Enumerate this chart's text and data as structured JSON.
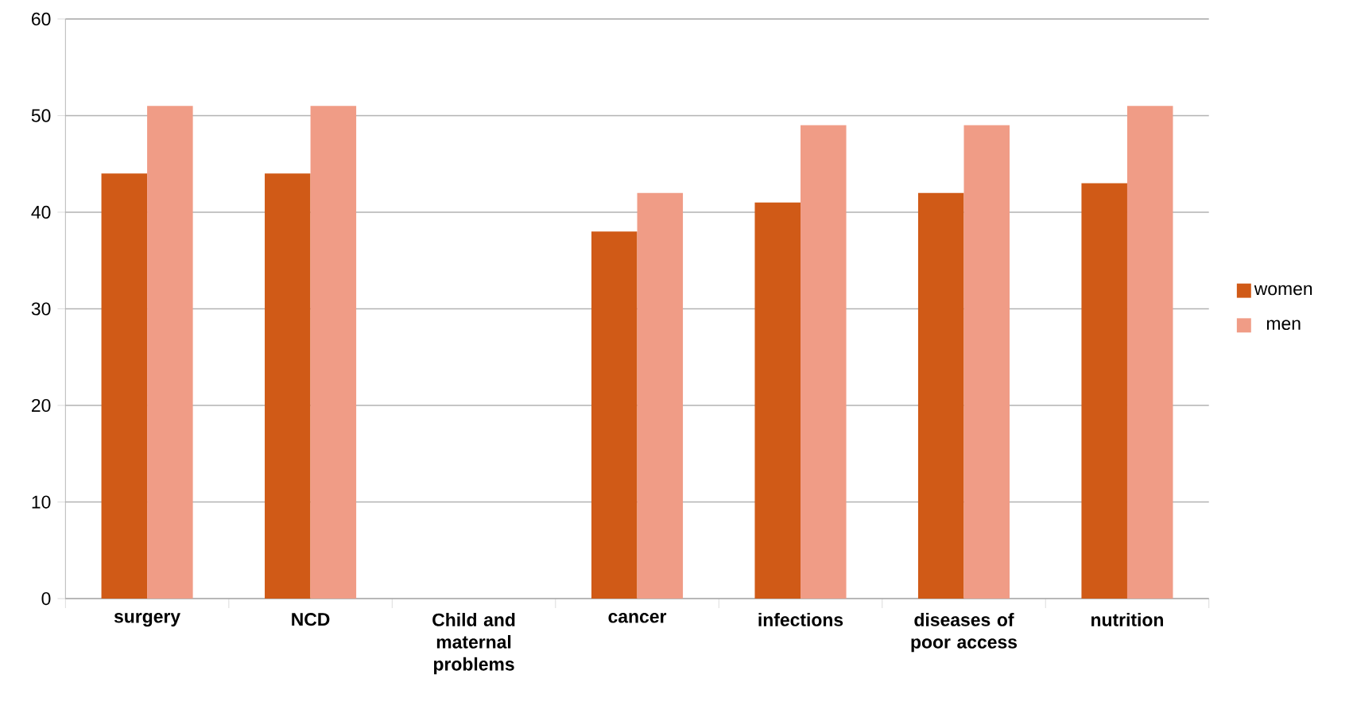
{
  "chart_data": {
    "type": "bar",
    "categories": [
      "surgery",
      "NCD",
      "Child and maternal problems",
      "cancer",
      "infections",
      "diseases of poor access",
      "nutrition"
    ],
    "series": [
      {
        "name": "women",
        "color": "#d05a17",
        "values": [
          44,
          44,
          null,
          38,
          41,
          42,
          43
        ]
      },
      {
        "name": "men",
        "color": "#f09c86",
        "values": [
          51,
          51,
          null,
          42,
          49,
          49,
          51
        ]
      }
    ],
    "ylim": [
      0,
      60
    ],
    "yticks": [
      0,
      10,
      20,
      30,
      40,
      50,
      60
    ],
    "grid": "y",
    "legend": "right"
  }
}
